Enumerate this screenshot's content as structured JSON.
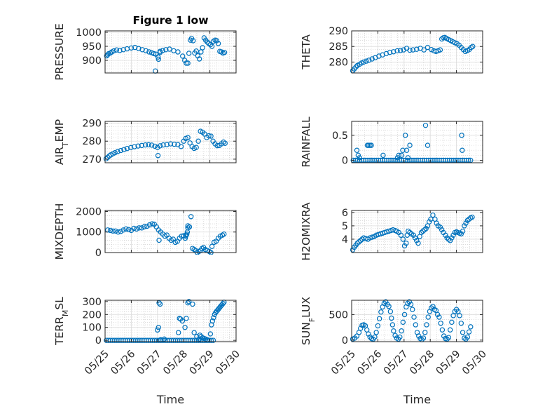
{
  "figure": {
    "title": "Figure 1 low",
    "xlabel": "Time"
  },
  "style": {
    "marker_color": "#0072bd",
    "axis_color": "#262626",
    "grid_color": "#c8c8c8"
  },
  "chart_data": [
    {
      "id": "pressure",
      "type": "scatter",
      "title": "Figure 1 low",
      "ylabel": "PRESSURE",
      "ylim": [
        855,
        1005
      ],
      "yticks": [
        900,
        950,
        1000
      ],
      "xlim": [
        0,
        5
      ],
      "grid": true,
      "x": [
        0.06,
        0.1,
        0.14,
        0.2,
        0.26,
        0.34,
        0.44,
        0.56,
        0.7,
        0.84,
        1.0,
        1.14,
        1.28,
        1.42,
        1.56,
        1.68,
        1.78,
        1.86,
        1.94,
        2.02,
        2.1,
        2.2,
        2.32,
        2.46,
        2.62,
        2.78,
        2.96,
        3.04,
        3.1,
        3.16,
        3.2,
        3.26,
        3.3,
        3.36,
        3.42,
        3.48,
        3.54,
        3.6,
        3.66,
        3.72,
        3.78,
        3.84,
        3.9,
        3.96,
        4.02,
        4.08,
        4.14,
        4.2,
        4.26,
        4.32,
        4.38,
        4.44,
        4.5,
        4.56,
        2.04,
        2.1,
        1.92
      ],
      "y": [
        916,
        920,
        924,
        926,
        930,
        934,
        937,
        935,
        938,
        941,
        944,
        946,
        942,
        938,
        934,
        930,
        927,
        924,
        922,
        912,
        932,
        935,
        938,
        940,
        934,
        930,
        915,
        900,
        890,
        890,
        925,
        972,
        978,
        970,
        926,
        933,
        916,
        905,
        930,
        945,
        980,
        972,
        965,
        960,
        956,
        950,
        968,
        972,
        970,
        960,
        932,
        930,
        926,
        928,
        904,
        928,
        862
      ]
    },
    {
      "id": "theta",
      "type": "scatter",
      "ylabel": "THETA",
      "ylim": [
        276.5,
        290
      ],
      "yticks": [
        280,
        285,
        290
      ],
      "xlim": [
        0,
        5
      ],
      "grid": true,
      "x": [
        0.04,
        0.1,
        0.16,
        0.22,
        0.3,
        0.38,
        0.46,
        0.56,
        0.66,
        0.78,
        0.9,
        1.04,
        1.18,
        1.32,
        1.46,
        1.6,
        1.74,
        1.86,
        1.98,
        2.1,
        2.22,
        2.34,
        2.48,
        2.62,
        2.76,
        2.9,
        3.04,
        3.14,
        3.22,
        3.3,
        3.38,
        3.44,
        3.5,
        3.56,
        3.62,
        3.7,
        3.78,
        3.86,
        3.94,
        4.02,
        4.1,
        4.18,
        4.26,
        4.34,
        4.42,
        4.5,
        4.56,
        4.62
      ],
      "y": [
        277.2,
        277.8,
        278.4,
        278.9,
        279.3,
        279.7,
        280.0,
        280.3,
        280.6,
        281.0,
        281.4,
        281.9,
        282.3,
        282.7,
        283.1,
        283.3,
        283.6,
        283.7,
        283.9,
        284.4,
        283.8,
        283.9,
        284.1,
        284.4,
        283.9,
        284.7,
        284.0,
        283.6,
        283.4,
        283.6,
        283.9,
        287.4,
        287.8,
        287.9,
        287.6,
        287.2,
        286.9,
        286.5,
        286.2,
        285.9,
        285.4,
        284.7,
        284.0,
        283.4,
        283.7,
        284.1,
        284.7,
        285.0
      ]
    },
    {
      "id": "air_temp",
      "type": "scatter",
      "ylabel": "AIR_TEMP",
      "ylim": [
        268,
        291
      ],
      "yticks": [
        270,
        280,
        290
      ],
      "xlim": [
        0,
        5
      ],
      "grid": true,
      "x": [
        0.04,
        0.1,
        0.16,
        0.22,
        0.3,
        0.38,
        0.48,
        0.6,
        0.72,
        0.84,
        0.98,
        1.12,
        1.26,
        1.4,
        1.54,
        1.66,
        1.78,
        1.9,
        2.0,
        2.02,
        2.1,
        2.22,
        2.36,
        2.5,
        2.64,
        2.78,
        2.9,
        3.0,
        3.08,
        3.16,
        3.24,
        3.32,
        3.4,
        3.48,
        3.56,
        3.64,
        3.72,
        3.8,
        3.88,
        3.96,
        4.04,
        4.12,
        4.2,
        4.28,
        4.36,
        4.44,
        4.52,
        4.58
      ],
      "y": [
        270.2,
        271.0,
        271.8,
        272.4,
        273.0,
        273.6,
        274.2,
        274.8,
        275.3,
        275.9,
        276.4,
        276.9,
        277.3,
        277.6,
        277.9,
        278.0,
        277.8,
        277.2,
        276.5,
        272.0,
        277.4,
        277.9,
        278.1,
        278.5,
        278.3,
        278.1,
        277.0,
        280.0,
        281.5,
        282.0,
        279.0,
        277.0,
        276.0,
        276.5,
        280.0,
        285.5,
        285.0,
        284.0,
        282.0,
        283.0,
        282.8,
        280.0,
        278.5,
        277.5,
        277.6,
        278.5,
        279.5,
        278.8
      ]
    },
    {
      "id": "rainfall",
      "type": "scatter",
      "ylabel": "RAINFALL",
      "ylim": [
        -0.05,
        0.78
      ],
      "yticks": [
        0,
        0.5
      ],
      "xlim": [
        0,
        5
      ],
      "grid": true,
      "x": [
        0.06,
        0.14,
        0.22,
        0.3,
        0.38,
        0.46,
        0.54,
        0.62,
        0.7,
        0.78,
        0.86,
        0.94,
        1.02,
        1.1,
        1.18,
        1.26,
        1.34,
        1.42,
        1.5,
        1.58,
        1.66,
        1.74,
        1.82,
        1.9,
        1.98,
        2.06,
        2.14,
        2.22,
        2.3,
        2.38,
        2.46,
        2.54,
        2.62,
        2.7,
        2.78,
        2.86,
        2.94,
        3.02,
        3.1,
        3.18,
        3.26,
        3.34,
        3.42,
        3.5,
        3.58,
        3.66,
        3.74,
        3.82,
        3.9,
        3.98,
        4.06,
        4.14,
        4.22,
        4.3,
        4.38,
        4.46,
        4.54,
        0.2,
        0.25,
        0.3,
        0.6,
        0.65,
        0.7,
        0.75,
        1.2,
        1.75,
        1.8,
        1.9,
        1.95,
        2.05,
        2.1,
        2.15,
        2.22,
        2.82,
        2.9,
        4.2,
        4.22
      ],
      "y": [
        0,
        0,
        0,
        0,
        0,
        0,
        0,
        0,
        0,
        0,
        0,
        0,
        0,
        0,
        0,
        0,
        0,
        0,
        0,
        0,
        0,
        0,
        0,
        0,
        0,
        0,
        0,
        0,
        0,
        0,
        0,
        0,
        0,
        0,
        0,
        0,
        0,
        0,
        0,
        0,
        0,
        0,
        0,
        0,
        0,
        0,
        0,
        0,
        0,
        0,
        0,
        0,
        0,
        0,
        0,
        0,
        0,
        0.2,
        0.1,
        0.05,
        0.3,
        0.3,
        0.3,
        0.3,
        0.1,
        0.05,
        0.1,
        0.1,
        0.2,
        0.5,
        0.2,
        0.05,
        0.3,
        0.7,
        0.3,
        0.5,
        0.2
      ]
    },
    {
      "id": "mixdepth",
      "type": "scatter",
      "ylabel": "MIXDEPTH",
      "ylim": [
        0,
        2050
      ],
      "yticks": [
        0,
        1000,
        2000
      ],
      "xlim": [
        0,
        5
      ],
      "grid": true,
      "x": [
        0.1,
        0.2,
        0.3,
        0.4,
        0.5,
        0.6,
        0.7,
        0.8,
        0.9,
        1.0,
        1.1,
        1.2,
        1.3,
        1.4,
        1.5,
        1.6,
        1.7,
        1.8,
        1.88,
        1.96,
        2.04,
        2.12,
        2.2,
        2.28,
        2.36,
        2.44,
        2.52,
        2.6,
        2.68,
        2.76,
        2.84,
        2.92,
        3.0,
        3.08,
        3.12,
        3.16,
        3.22,
        3.28,
        3.34,
        3.4,
        3.46,
        3.52,
        3.58,
        3.64,
        3.7,
        3.76,
        3.82,
        3.9,
        3.98,
        4.04,
        4.08,
        4.16,
        4.24,
        4.32,
        4.4,
        4.48,
        4.54,
        2.06,
        3.06,
        3.1,
        3.14,
        3.16
      ],
      "y": [
        1100,
        1080,
        1050,
        1050,
        1000,
        1030,
        1100,
        1150,
        1120,
        1080,
        1180,
        1150,
        1200,
        1200,
        1260,
        1280,
        1350,
        1400,
        1380,
        1250,
        1100,
        1000,
        900,
        800,
        850,
        700,
        600,
        650,
        500,
        550,
        700,
        800,
        820,
        800,
        900,
        1200,
        1250,
        1750,
        200,
        150,
        100,
        0,
        50,
        100,
        200,
        250,
        150,
        100,
        50,
        0,
        300,
        500,
        550,
        700,
        800,
        850,
        900,
        600,
        700,
        850,
        1000,
        1300
      ]
    },
    {
      "id": "h2omixra",
      "type": "scatter",
      "ylabel": "H2OMIXRA",
      "ylim": [
        3.0,
        6.15
      ],
      "yticks": [
        4,
        5,
        6
      ],
      "xlim": [
        0,
        5
      ],
      "grid": true,
      "x": [
        0.04,
        0.1,
        0.16,
        0.22,
        0.28,
        0.34,
        0.4,
        0.46,
        0.54,
        0.62,
        0.7,
        0.78,
        0.86,
        0.94,
        1.02,
        1.1,
        1.18,
        1.26,
        1.34,
        1.42,
        1.5,
        1.58,
        1.66,
        1.72,
        1.8,
        1.88,
        1.96,
        2.02,
        2.08,
        2.12,
        2.16,
        2.22,
        2.28,
        2.36,
        2.42,
        2.48,
        2.54,
        2.6,
        2.66,
        2.72,
        2.78,
        2.84,
        2.9,
        2.96,
        3.02,
        3.1,
        3.18,
        3.24,
        3.3,
        3.38,
        3.44,
        3.5,
        3.58,
        3.64,
        3.7,
        3.76,
        3.82,
        3.88,
        3.94,
        4.0,
        4.06,
        4.12,
        4.18,
        4.24,
        4.3,
        4.36,
        4.42,
        4.48,
        4.54,
        4.6
      ],
      "y": [
        3.2,
        3.4,
        3.55,
        3.7,
        3.8,
        3.9,
        4.0,
        4.1,
        4.05,
        4.0,
        4.1,
        4.15,
        4.2,
        4.3,
        4.35,
        4.4,
        4.45,
        4.5,
        4.55,
        4.6,
        4.65,
        4.7,
        4.65,
        4.6,
        4.5,
        4.3,
        4.0,
        3.5,
        3.7,
        4.3,
        4.6,
        4.5,
        4.4,
        4.3,
        4.1,
        3.9,
        3.7,
        4.2,
        4.5,
        4.6,
        4.7,
        4.8,
        5.0,
        5.3,
        5.5,
        5.8,
        5.5,
        5.2,
        5.0,
        4.9,
        4.7,
        4.5,
        4.3,
        4.1,
        4.0,
        3.9,
        4.1,
        4.3,
        4.5,
        4.55,
        4.5,
        4.45,
        4.4,
        4.6,
        5.0,
        5.2,
        5.4,
        5.5,
        5.6,
        5.65
      ]
    },
    {
      "id": "terr_msl",
      "type": "scatter",
      "ylabel": "TERR_MSL",
      "ylim": [
        -10,
        310
      ],
      "yticks": [
        0,
        100,
        200,
        300
      ],
      "xlim": [
        0,
        5
      ],
      "grid": true,
      "x": [
        0.05,
        0.13,
        0.21,
        0.29,
        0.37,
        0.45,
        0.53,
        0.61,
        0.69,
        0.77,
        0.85,
        0.93,
        1.01,
        1.09,
        1.17,
        1.25,
        1.33,
        1.41,
        1.49,
        1.57,
        1.65,
        1.73,
        1.81,
        1.89,
        1.97,
        2.05,
        2.13,
        2.21,
        2.29,
        2.37,
        2.45,
        2.53,
        2.61,
        2.69,
        2.77,
        2.85,
        2.93,
        3.01,
        3.09,
        3.17,
        3.25,
        3.33,
        3.41,
        3.49,
        3.57,
        3.65,
        3.73,
        3.81,
        3.89,
        3.97,
        4.05,
        4.13,
        2.0,
        2.04,
        2.06,
        2.1,
        2.12,
        2.26,
        2.8,
        2.84,
        2.88,
        2.95,
        3.05,
        3.1,
        3.16,
        3.2,
        3.34,
        3.4,
        3.5,
        3.56,
        3.6,
        3.62,
        3.66,
        3.72,
        3.78,
        3.84,
        3.9,
        4.02,
        4.06,
        4.1,
        4.14,
        4.18,
        4.22,
        4.26,
        4.3,
        4.34,
        4.38,
        4.42,
        4.46,
        4.5,
        4.54
      ],
      "y": [
        0,
        0,
        0,
        0,
        0,
        0,
        0,
        0,
        0,
        0,
        0,
        0,
        0,
        0,
        0,
        0,
        0,
        0,
        0,
        0,
        0,
        0,
        0,
        0,
        0,
        0,
        0,
        0,
        0,
        0,
        0,
        0,
        0,
        0,
        0,
        0,
        0,
        0,
        0,
        0,
        0,
        0,
        0,
        0,
        0,
        0,
        0,
        0,
        0,
        0,
        0,
        0,
        80,
        100,
        290,
        280,
        5,
        10,
        60,
        170,
        165,
        150,
        100,
        170,
        290,
        300,
        280,
        60,
        30,
        5,
        10,
        40,
        30,
        20,
        15,
        10,
        5,
        50,
        120,
        150,
        175,
        200,
        215,
        225,
        235,
        245,
        255,
        265,
        275,
        285,
        295
      ]
    },
    {
      "id": "sun_flux",
      "type": "scatter",
      "ylabel": "SUN_FLUX",
      "ylim": [
        -30,
        780
      ],
      "yticks": [
        0,
        500
      ],
      "xlim": [
        0,
        5
      ],
      "grid": true,
      "x": [
        0.04,
        0.12,
        0.2,
        0.28,
        0.34,
        0.4,
        0.46,
        0.52,
        0.58,
        0.64,
        0.7,
        0.76,
        0.82,
        0.88,
        0.94,
        1.0,
        1.06,
        1.12,
        1.18,
        1.24,
        1.3,
        1.36,
        1.42,
        1.48,
        1.52,
        1.56,
        1.6,
        1.66,
        1.72,
        1.78,
        1.84,
        1.9,
        1.96,
        2.02,
        2.08,
        2.14,
        2.2,
        2.26,
        2.32,
        2.38,
        2.44,
        2.5,
        2.56,
        2.62,
        2.68,
        2.74,
        2.8,
        2.86,
        2.92,
        2.98,
        3.04,
        3.1,
        3.16,
        3.22,
        3.28,
        3.34,
        3.4,
        3.46,
        3.52,
        3.58,
        3.64,
        3.7,
        3.76,
        3.82,
        3.88,
        3.94,
        4.0,
        4.06,
        4.12,
        4.18,
        4.24,
        4.3,
        4.36,
        4.42,
        4.48,
        4.54
      ],
      "y": [
        20,
        40,
        80,
        150,
        230,
        290,
        300,
        280,
        200,
        120,
        60,
        30,
        20,
        60,
        150,
        280,
        420,
        550,
        650,
        720,
        750,
        700,
        660,
        560,
        430,
        300,
        180,
        90,
        40,
        20,
        60,
        180,
        350,
        500,
        650,
        720,
        750,
        700,
        600,
        450,
        300,
        150,
        80,
        30,
        10,
        40,
        150,
        300,
        450,
        560,
        630,
        660,
        600,
        580,
        500,
        450,
        330,
        200,
        80,
        30,
        20,
        50,
        200,
        350,
        480,
        560,
        600,
        560,
        480,
        330,
        150,
        40,
        20,
        60,
        160,
        260
      ]
    }
  ]
}
